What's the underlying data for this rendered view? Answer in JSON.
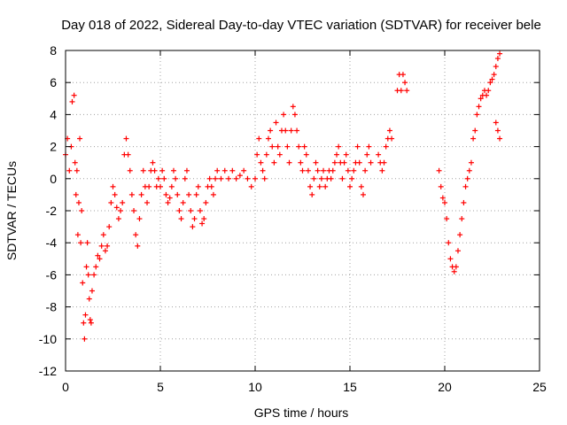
{
  "chart_data": {
    "type": "scatter",
    "title": "Day 018 of 2022, Sidereal Day-to-day VTEC variation (SDTVAR) for receiver bele",
    "xlabel": "GPS time / hours",
    "ylabel": "SDTVAR / TECUs",
    "xlim": [
      0,
      25
    ],
    "ylim": [
      -12,
      8
    ],
    "xticks": [
      0,
      5,
      10,
      15,
      20,
      25
    ],
    "yticks": [
      -12,
      -10,
      -8,
      -6,
      -4,
      -2,
      0,
      2,
      4,
      6,
      8
    ],
    "grid": true,
    "marker": "+",
    "color": "#ff0000",
    "series": [
      {
        "name": "SDTVAR",
        "trace": [
          [
            0.0,
            1.5
          ],
          [
            0.1,
            2.5
          ],
          [
            0.2,
            0.5
          ],
          [
            0.3,
            2.0
          ],
          [
            0.35,
            4.8
          ],
          [
            0.45,
            5.2
          ],
          [
            0.5,
            1.0
          ],
          [
            0.55,
            -1.0
          ],
          [
            0.6,
            0.5
          ],
          [
            0.65,
            -3.5
          ],
          [
            0.7,
            -1.5
          ],
          [
            0.75,
            2.5
          ],
          [
            0.8,
            -4.0
          ],
          [
            0.85,
            -2.0
          ],
          [
            0.9,
            -6.5
          ],
          [
            0.95,
            -9.0
          ],
          [
            1.0,
            -10.0
          ],
          [
            1.05,
            -8.5
          ],
          [
            1.1,
            -5.5
          ],
          [
            1.15,
            -4.0
          ],
          [
            1.2,
            -6.0
          ],
          [
            1.25,
            -7.5
          ],
          [
            1.3,
            -8.8
          ],
          [
            1.35,
            -9.0
          ],
          [
            1.4,
            -7.0
          ],
          [
            1.5,
            -6.0
          ],
          [
            1.6,
            -5.5
          ],
          [
            1.7,
            -4.8
          ],
          [
            1.8,
            -5.0
          ],
          [
            1.9,
            -4.2
          ],
          [
            2.0,
            -3.5
          ],
          [
            2.1,
            -4.5
          ],
          [
            2.2,
            -4.2
          ],
          [
            2.3,
            -3.0
          ],
          [
            2.4,
            -1.5
          ],
          [
            2.5,
            -0.5
          ],
          [
            2.6,
            -1.0
          ],
          [
            2.7,
            -1.8
          ],
          [
            2.8,
            -2.5
          ],
          [
            2.9,
            -2.0
          ],
          [
            3.0,
            -1.5
          ],
          [
            3.1,
            1.5
          ],
          [
            3.2,
            2.5
          ],
          [
            3.3,
            1.5
          ],
          [
            3.4,
            0.5
          ],
          [
            3.5,
            -1.0
          ],
          [
            3.6,
            -2.0
          ],
          [
            3.7,
            -3.5
          ],
          [
            3.8,
            -4.2
          ],
          [
            3.9,
            -2.5
          ],
          [
            4.0,
            -1.0
          ],
          [
            4.1,
            0.5
          ],
          [
            4.2,
            -0.5
          ],
          [
            4.3,
            -1.5
          ],
          [
            4.4,
            -0.5
          ],
          [
            4.5,
            0.5
          ],
          [
            4.6,
            1.0
          ],
          [
            4.7,
            0.5
          ],
          [
            4.8,
            -0.5
          ],
          [
            4.9,
            0.0
          ],
          [
            5.0,
            -0.5
          ],
          [
            5.1,
            0.5
          ],
          [
            5.2,
            0.0
          ],
          [
            5.3,
            -1.0
          ],
          [
            5.4,
            -1.5
          ],
          [
            5.5,
            -1.2
          ],
          [
            5.6,
            -0.5
          ],
          [
            5.7,
            0.5
          ],
          [
            5.8,
            0.0
          ],
          [
            5.9,
            -1.0
          ],
          [
            6.0,
            -2.0
          ],
          [
            6.1,
            -2.5
          ],
          [
            6.2,
            -1.5
          ],
          [
            6.3,
            0.0
          ],
          [
            6.4,
            0.5
          ],
          [
            6.5,
            -1.0
          ],
          [
            6.6,
            -2.0
          ],
          [
            6.7,
            -3.0
          ],
          [
            6.8,
            -2.5
          ],
          [
            6.9,
            -1.0
          ],
          [
            7.0,
            -0.5
          ],
          [
            7.1,
            -2.0
          ],
          [
            7.2,
            -2.8
          ],
          [
            7.3,
            -2.5
          ],
          [
            7.4,
            -1.5
          ],
          [
            7.5,
            -0.5
          ],
          [
            7.6,
            0.0
          ],
          [
            7.7,
            -0.5
          ],
          [
            7.8,
            -1.0
          ],
          [
            7.9,
            0.0
          ],
          [
            8.0,
            0.5
          ],
          [
            8.2,
            0.0
          ],
          [
            8.4,
            0.5
          ],
          [
            8.6,
            0.0
          ],
          [
            8.8,
            0.5
          ],
          [
            9.0,
            0.0
          ],
          [
            9.2,
            0.2
          ],
          [
            9.4,
            0.5
          ],
          [
            9.6,
            0.0
          ],
          [
            9.8,
            -0.5
          ],
          [
            10.0,
            0.0
          ],
          [
            10.1,
            1.5
          ],
          [
            10.2,
            2.5
          ],
          [
            10.3,
            1.0
          ],
          [
            10.4,
            0.5
          ],
          [
            10.5,
            0.0
          ],
          [
            10.6,
            1.5
          ],
          [
            10.7,
            2.5
          ],
          [
            10.8,
            3.0
          ],
          [
            10.9,
            2.0
          ],
          [
            11.0,
            1.0
          ],
          [
            11.1,
            3.5
          ],
          [
            11.2,
            2.0
          ],
          [
            11.3,
            1.5
          ],
          [
            11.4,
            3.0
          ],
          [
            11.5,
            4.0
          ],
          [
            11.6,
            3.0
          ],
          [
            11.7,
            2.0
          ],
          [
            11.8,
            1.0
          ],
          [
            11.9,
            3.0
          ],
          [
            12.0,
            4.5
          ],
          [
            12.1,
            4.0
          ],
          [
            12.2,
            3.0
          ],
          [
            12.3,
            2.0
          ],
          [
            12.4,
            1.0
          ],
          [
            12.5,
            0.5
          ],
          [
            12.6,
            2.0
          ],
          [
            12.7,
            1.5
          ],
          [
            12.8,
            0.5
          ],
          [
            12.9,
            -0.5
          ],
          [
            13.0,
            -1.0
          ],
          [
            13.1,
            0.0
          ],
          [
            13.2,
            1.0
          ],
          [
            13.3,
            0.5
          ],
          [
            13.4,
            -0.5
          ],
          [
            13.5,
            0.0
          ],
          [
            13.6,
            0.5
          ],
          [
            13.7,
            -0.5
          ],
          [
            13.8,
            0.0
          ],
          [
            13.9,
            0.5
          ],
          [
            14.0,
            0.0
          ],
          [
            14.1,
            0.5
          ],
          [
            14.2,
            1.0
          ],
          [
            14.3,
            1.5
          ],
          [
            14.4,
            2.0
          ],
          [
            14.5,
            1.0
          ],
          [
            14.6,
            0.0
          ],
          [
            14.7,
            1.0
          ],
          [
            14.8,
            1.5
          ],
          [
            14.9,
            0.5
          ],
          [
            15.0,
            -0.5
          ],
          [
            15.1,
            0.0
          ],
          [
            15.2,
            0.5
          ],
          [
            15.3,
            1.0
          ],
          [
            15.4,
            2.0
          ],
          [
            15.5,
            1.0
          ],
          [
            15.6,
            -0.5
          ],
          [
            15.7,
            -1.0
          ],
          [
            15.8,
            0.5
          ],
          [
            15.9,
            1.5
          ],
          [
            16.0,
            2.0
          ],
          [
            16.1,
            1.0
          ],
          [
            16.5,
            1.5
          ],
          [
            16.6,
            1.0
          ],
          [
            16.7,
            0.5
          ],
          [
            16.8,
            1.0
          ],
          [
            16.9,
            2.0
          ],
          [
            17.0,
            2.5
          ],
          [
            17.1,
            3.0
          ],
          [
            17.2,
            2.5
          ],
          [
            17.5,
            5.5
          ],
          [
            17.6,
            6.5
          ],
          [
            17.7,
            5.5
          ],
          [
            17.8,
            6.5
          ],
          [
            17.9,
            6.0
          ],
          [
            18.0,
            5.5
          ],
          [
            19.7,
            0.5
          ],
          [
            19.8,
            -0.5
          ],
          [
            19.9,
            -1.2
          ],
          [
            20.0,
            -1.5
          ],
          [
            20.1,
            -2.5
          ],
          [
            20.2,
            -4.0
          ],
          [
            20.3,
            -5.0
          ],
          [
            20.4,
            -5.5
          ],
          [
            20.5,
            -5.8
          ],
          [
            20.6,
            -5.5
          ],
          [
            20.7,
            -4.5
          ],
          [
            20.8,
            -3.5
          ],
          [
            20.9,
            -2.5
          ],
          [
            21.0,
            -1.5
          ],
          [
            21.1,
            -0.5
          ],
          [
            21.2,
            0.0
          ],
          [
            21.3,
            0.5
          ],
          [
            21.4,
            1.0
          ],
          [
            21.5,
            2.5
          ],
          [
            21.6,
            3.0
          ],
          [
            21.7,
            4.0
          ],
          [
            21.8,
            4.5
          ],
          [
            21.9,
            5.0
          ],
          [
            22.0,
            5.2
          ],
          [
            22.1,
            5.5
          ],
          [
            22.2,
            5.2
          ],
          [
            22.3,
            5.5
          ],
          [
            22.4,
            6.0
          ],
          [
            22.5,
            6.2
          ],
          [
            22.6,
            6.5
          ],
          [
            22.7,
            7.0
          ],
          [
            22.8,
            7.5
          ],
          [
            22.9,
            7.8
          ],
          [
            22.7,
            3.5
          ],
          [
            22.8,
            3.0
          ],
          [
            22.9,
            2.5
          ]
        ]
      }
    ]
  }
}
